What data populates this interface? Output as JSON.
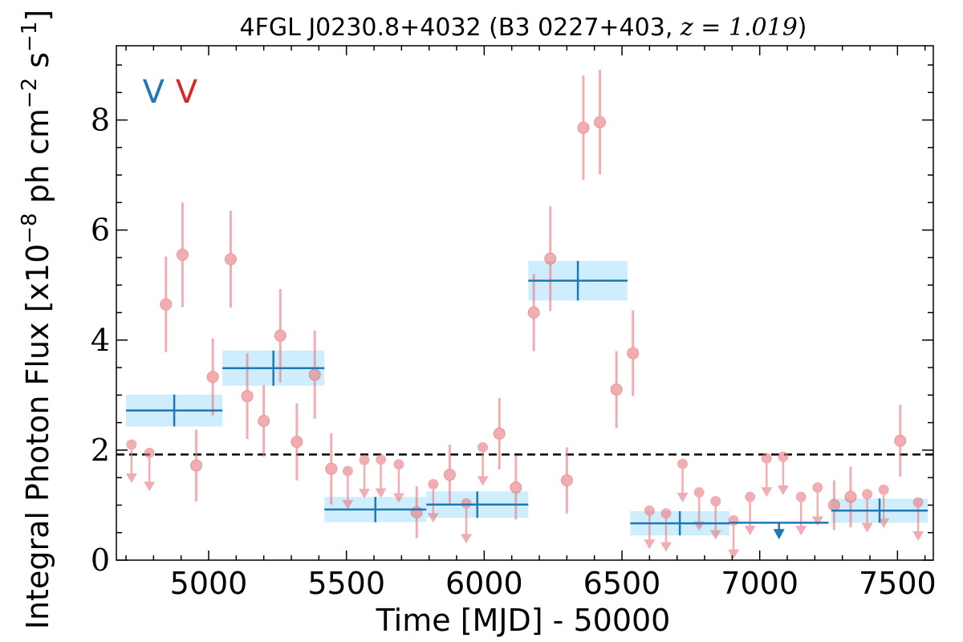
{
  "chart_data": {
    "type": "scatter",
    "title": "4FGL J0230.8+4032 (B3 0227+403, ",
    "title_math": "z = 1.019",
    "title_close": ")",
    "xlabel": "Time [MJD] - 50000",
    "ylabel": "Integral Photon Flux [x10",
    "ylabel_exp": "−8",
    "ylabel_mid": " ph cm",
    "ylabel_exp2": "−2",
    "ylabel_mid2": " s",
    "ylabel_exp3": "−1",
    "ylabel_close": "]",
    "xlim": [
      4665,
      7630
    ],
    "ylim": [
      0,
      9.35
    ],
    "x_ticks": [
      5000,
      5500,
      6000,
      6500,
      7000,
      7500
    ],
    "x_tick_labels": [
      "5000",
      "5500",
      "6000",
      "6500",
      "7000",
      "7500"
    ],
    "y_ticks": [
      0,
      2,
      4,
      6,
      8
    ],
    "y_tick_labels": [
      "0",
      "2",
      "4",
      "6",
      "8"
    ],
    "average_flux": 1.92,
    "markers": [
      {
        "label": "V",
        "x": 4800,
        "color": "#1f77b4"
      },
      {
        "label": "V",
        "x": 4920,
        "color": "#d62728"
      }
    ],
    "colors": {
      "monthly": "#e8787e",
      "bin": "#1f77b4",
      "bin_band": "#cfeefd",
      "average": "#000000"
    },
    "series": [
      {
        "kind": "monthly-detections",
        "points": [
          {
            "x": 4845,
            "y": 4.65,
            "err": 0.87
          },
          {
            "x": 4905,
            "y": 5.55,
            "err": 0.95
          },
          {
            "x": 4955,
            "y": 1.72,
            "err": 0.65
          },
          {
            "x": 5015,
            "y": 3.33,
            "err": 0.7
          },
          {
            "x": 5080,
            "y": 5.47,
            "err": 0.88
          },
          {
            "x": 5140,
            "y": 2.98,
            "err": 0.78
          },
          {
            "x": 5200,
            "y": 2.53,
            "err": 0.65
          },
          {
            "x": 5260,
            "y": 4.08,
            "err": 0.85
          },
          {
            "x": 5320,
            "y": 2.15,
            "err": 0.7
          },
          {
            "x": 5385,
            "y": 3.37,
            "err": 0.8
          },
          {
            "x": 5445,
            "y": 1.66,
            "err": 0.65
          },
          {
            "x": 5755,
            "y": 0.87,
            "err": 0.47
          },
          {
            "x": 5875,
            "y": 1.55,
            "err": 0.55
          },
          {
            "x": 6055,
            "y": 2.3,
            "err": 0.65
          },
          {
            "x": 6115,
            "y": 1.32,
            "err": 0.58
          },
          {
            "x": 6180,
            "y": 4.5,
            "err": 0.7
          },
          {
            "x": 6240,
            "y": 5.48,
            "err": 0.95
          },
          {
            "x": 6300,
            "y": 1.45,
            "err": 0.6
          },
          {
            "x": 6360,
            "y": 7.86,
            "err": 0.95
          },
          {
            "x": 6420,
            "y": 7.96,
            "err": 0.95
          },
          {
            "x": 6480,
            "y": 3.1,
            "err": 0.7
          },
          {
            "x": 6540,
            "y": 3.76,
            "err": 0.78
          },
          {
            "x": 7270,
            "y": 1.0,
            "err": 0.45
          },
          {
            "x": 7330,
            "y": 1.15,
            "err": 0.55
          },
          {
            "x": 7510,
            "y": 2.17,
            "err": 0.65
          }
        ]
      },
      {
        "kind": "monthly-upper-limits",
        "points": [
          {
            "x": 4720,
            "y": 2.1,
            "y_end": 1.43
          },
          {
            "x": 4785,
            "y": 1.95,
            "y_end": 1.28
          },
          {
            "x": 5505,
            "y": 1.62,
            "y_end": 0.95
          },
          {
            "x": 5565,
            "y": 1.82,
            "y_end": 1.15
          },
          {
            "x": 5625,
            "y": 1.83,
            "y_end": 1.16
          },
          {
            "x": 5690,
            "y": 1.74,
            "y_end": 1.07
          },
          {
            "x": 5815,
            "y": 1.38,
            "y_end": 0.71
          },
          {
            "x": 5935,
            "y": 1.03,
            "y_end": 0.33
          },
          {
            "x": 5995,
            "y": 2.05,
            "y_end": 1.38
          },
          {
            "x": 6600,
            "y": 0.9,
            "y_end": 0.23
          },
          {
            "x": 6660,
            "y": 0.85,
            "y_end": 0.18
          },
          {
            "x": 6720,
            "y": 1.75,
            "y_end": 1.08
          },
          {
            "x": 6780,
            "y": 1.23,
            "y_end": 0.56
          },
          {
            "x": 6840,
            "y": 1.07,
            "y_end": 0.4
          },
          {
            "x": 6905,
            "y": 0.72,
            "y_end": 0.05
          },
          {
            "x": 6965,
            "y": 1.15,
            "y_end": 0.48
          },
          {
            "x": 7025,
            "y": 1.85,
            "y_end": 1.18
          },
          {
            "x": 7085,
            "y": 1.88,
            "y_end": 1.21
          },
          {
            "x": 7150,
            "y": 1.15,
            "y_end": 0.48
          },
          {
            "x": 7210,
            "y": 1.32,
            "y_end": 0.65
          },
          {
            "x": 7390,
            "y": 1.2,
            "y_end": 0.53
          },
          {
            "x": 7450,
            "y": 1.28,
            "y_end": 0.61
          },
          {
            "x": 7575,
            "y": 1.05,
            "y_end": 0.38
          }
        ]
      },
      {
        "kind": "bayesian-blocks",
        "blocks": [
          {
            "x0": 4700,
            "x1": 5050,
            "y": 2.72,
            "err": 0.29
          },
          {
            "x0": 5050,
            "x1": 5420,
            "y": 3.49,
            "err": 0.32
          },
          {
            "x0": 5420,
            "x1": 5790,
            "y": 0.92,
            "err": 0.23
          },
          {
            "x0": 5790,
            "x1": 6160,
            "y": 1.01,
            "err": 0.24
          },
          {
            "x0": 6160,
            "x1": 6520,
            "y": 5.08,
            "err": 0.36
          },
          {
            "x0": 6530,
            "x1": 6890,
            "y": 0.67,
            "err": 0.22
          },
          {
            "x0": 7260,
            "x1": 7610,
            "y": 0.9,
            "err": 0.22
          }
        ],
        "upper_limit_blocks": [
          {
            "x0": 6890,
            "x1": 7250,
            "y": 0.68,
            "y_end": 0.42
          }
        ]
      }
    ]
  }
}
